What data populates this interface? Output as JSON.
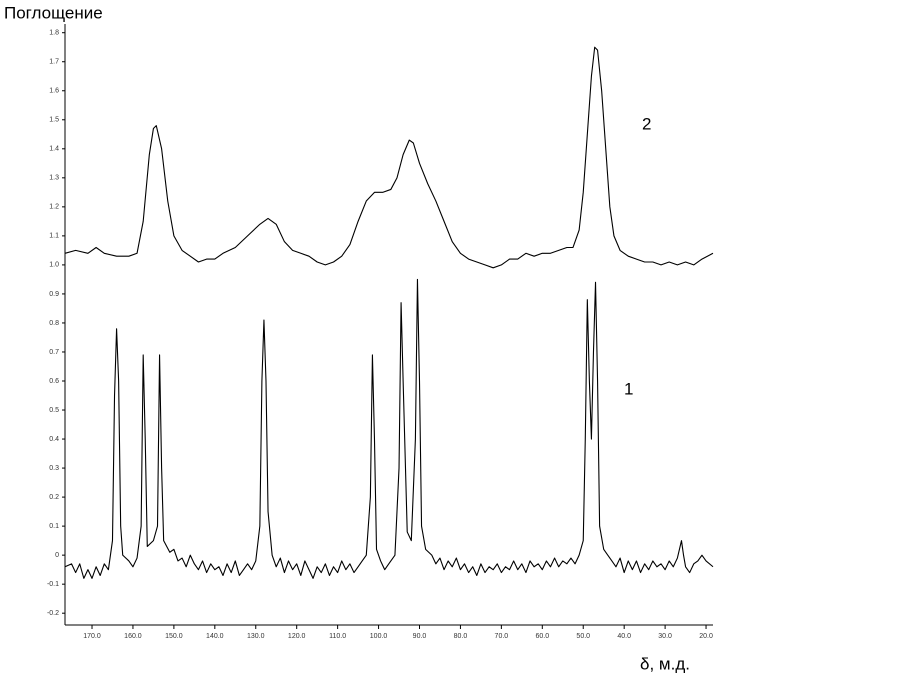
{
  "chart_data": {
    "type": "line",
    "ylabel": "Поглощение",
    "xlabel": "δ, м.д.",
    "xlim": [
      176.6,
      18.3
    ],
    "ylim": [
      -0.22,
      1.83
    ],
    "xticks": [
      {
        "value": 170,
        "label": "170.0"
      },
      {
        "value": 160,
        "label": "160.0"
      },
      {
        "value": 150,
        "label": "150.0"
      },
      {
        "value": 140,
        "label": "140.0"
      },
      {
        "value": 130,
        "label": "130.0"
      },
      {
        "value": 120,
        "label": "120.0"
      },
      {
        "value": 110,
        "label": "110.0"
      },
      {
        "value": 100,
        "label": "100.0"
      },
      {
        "value": 90,
        "label": "90.0"
      },
      {
        "value": 80,
        "label": "80.0"
      },
      {
        "value": 70,
        "label": "70.0"
      },
      {
        "value": 60,
        "label": "60.0"
      },
      {
        "value": 50,
        "label": "50.0"
      },
      {
        "value": 40,
        "label": "40.0"
      },
      {
        "value": 30,
        "label": "30.0"
      },
      {
        "value": 20,
        "label": "20.0"
      }
    ],
    "yticks": [
      -0.2,
      -0.1,
      0,
      0.1,
      0.2,
      0.3,
      0.4,
      0.5,
      0.6,
      0.7,
      0.8,
      0.9,
      {
        "value": 1,
        "label": "1.0"
      },
      1.1,
      1.2,
      1.3,
      1.4,
      1.5,
      1.6,
      1.7,
      1.8
    ],
    "series": [
      {
        "name": "1",
        "color": "#000000",
        "x": [
          176.6,
          175,
          174,
          173,
          172,
          171,
          170,
          169,
          168,
          167,
          166,
          165,
          164.5,
          164,
          163.5,
          163,
          162.5,
          161,
          160,
          159,
          158,
          157.5,
          157,
          156.5,
          155,
          154,
          153.5,
          153,
          152.5,
          151,
          150,
          149,
          148,
          147,
          146,
          145,
          144,
          143,
          142,
          141,
          140,
          139,
          138,
          137,
          136,
          135,
          134,
          133,
          132,
          131,
          130,
          129,
          128.5,
          128,
          127.5,
          127,
          126,
          125,
          124,
          123,
          122,
          121,
          120,
          119,
          118,
          117,
          116,
          115,
          114,
          113,
          112,
          111,
          110,
          109,
          108,
          107,
          106,
          105,
          104,
          103,
          102,
          101.5,
          101,
          100.5,
          99.5,
          98.5,
          97.5,
          96,
          95,
          94.5,
          94,
          93,
          92,
          91,
          90.5,
          90,
          89.5,
          88.5,
          87,
          86,
          85,
          84,
          83,
          82,
          81,
          80,
          79,
          78,
          77,
          76,
          75,
          74,
          73,
          72,
          71,
          70,
          69,
          68,
          67,
          66,
          65,
          64,
          63,
          62,
          61,
          60,
          59,
          58,
          57,
          56,
          55,
          54,
          53,
          52,
          51,
          50,
          49.5,
          49,
          48.5,
          48,
          47.5,
          47,
          46.5,
          46,
          45,
          44,
          43,
          42,
          41,
          40,
          39,
          38,
          37,
          36,
          35,
          34,
          33,
          32,
          31,
          30,
          29,
          28,
          27,
          26.5,
          26,
          25.5,
          25,
          24,
          23,
          22,
          21,
          20,
          18.3
        ],
        "values": [
          -0.04,
          -0.03,
          -0.06,
          -0.03,
          -0.08,
          -0.05,
          -0.08,
          -0.04,
          -0.07,
          -0.03,
          -0.05,
          0.05,
          0.55,
          0.78,
          0.6,
          0.1,
          0.0,
          -0.02,
          -0.04,
          -0.01,
          0.1,
          0.69,
          0.4,
          0.03,
          0.05,
          0.1,
          0.69,
          0.3,
          0.05,
          0.01,
          0.02,
          -0.02,
          -0.01,
          -0.04,
          0.0,
          -0.03,
          -0.05,
          -0.02,
          -0.06,
          -0.03,
          -0.05,
          -0.04,
          -0.07,
          -0.03,
          -0.06,
          -0.02,
          -0.07,
          -0.05,
          -0.03,
          -0.05,
          -0.02,
          0.1,
          0.6,
          0.81,
          0.6,
          0.15,
          0.0,
          -0.04,
          -0.01,
          -0.06,
          -0.02,
          -0.05,
          -0.03,
          -0.07,
          -0.02,
          -0.05,
          -0.08,
          -0.04,
          -0.06,
          -0.03,
          -0.07,
          -0.04,
          -0.06,
          -0.02,
          -0.05,
          -0.03,
          -0.06,
          -0.04,
          -0.02,
          0.0,
          0.2,
          0.69,
          0.4,
          0.02,
          -0.02,
          -0.05,
          -0.03,
          0.0,
          0.3,
          0.87,
          0.6,
          0.08,
          0.05,
          0.4,
          0.95,
          0.6,
          0.1,
          0.02,
          0.0,
          -0.03,
          -0.01,
          -0.05,
          -0.02,
          -0.04,
          -0.01,
          -0.05,
          -0.03,
          -0.06,
          -0.04,
          -0.07,
          -0.03,
          -0.06,
          -0.04,
          -0.05,
          -0.03,
          -0.06,
          -0.04,
          -0.05,
          -0.02,
          -0.05,
          -0.03,
          -0.06,
          -0.02,
          -0.04,
          -0.03,
          -0.05,
          -0.02,
          -0.04,
          -0.01,
          -0.04,
          -0.02,
          -0.03,
          -0.01,
          -0.03,
          0.0,
          0.05,
          0.4,
          0.88,
          0.6,
          0.4,
          0.7,
          0.94,
          0.6,
          0.1,
          0.02,
          0.0,
          -0.02,
          -0.04,
          -0.01,
          -0.06,
          -0.02,
          -0.05,
          -0.02,
          -0.06,
          -0.03,
          -0.05,
          -0.02,
          -0.04,
          -0.03,
          -0.05,
          -0.02,
          -0.04,
          -0.01,
          0.02,
          0.05,
          0.0,
          -0.04,
          -0.06,
          -0.03,
          -0.02,
          0.0,
          -0.02,
          -0.04
        ]
      },
      {
        "name": "2",
        "color": "#000000",
        "x": [
          176.6,
          174,
          171,
          169,
          167,
          164,
          161,
          159,
          157.5,
          156,
          155,
          154.3,
          153,
          151.5,
          150,
          148,
          146,
          144,
          142,
          140,
          138,
          135,
          132,
          129,
          127,
          125,
          123,
          121,
          119,
          117,
          115,
          113,
          111,
          109,
          107,
          105,
          103,
          101,
          99,
          97,
          95.5,
          94,
          92.5,
          91.5,
          90,
          88,
          86,
          84,
          82,
          80,
          78,
          76,
          74,
          72,
          70,
          68,
          66,
          64,
          62,
          60,
          58,
          56,
          54,
          52.5,
          51,
          50,
          49,
          48,
          47.2,
          46.5,
          45.5,
          44.5,
          43.5,
          42.5,
          41,
          39,
          37,
          35,
          33,
          31,
          29,
          27,
          25,
          23,
          21,
          18.3
        ],
        "values": [
          1.04,
          1.05,
          1.04,
          1.06,
          1.04,
          1.03,
          1.03,
          1.04,
          1.15,
          1.38,
          1.47,
          1.48,
          1.4,
          1.22,
          1.1,
          1.05,
          1.03,
          1.01,
          1.02,
          1.02,
          1.04,
          1.06,
          1.1,
          1.14,
          1.16,
          1.14,
          1.08,
          1.05,
          1.04,
          1.03,
          1.01,
          1.0,
          1.01,
          1.03,
          1.07,
          1.15,
          1.22,
          1.25,
          1.25,
          1.26,
          1.3,
          1.38,
          1.43,
          1.42,
          1.35,
          1.28,
          1.22,
          1.15,
          1.08,
          1.04,
          1.02,
          1.01,
          1.0,
          0.99,
          1.0,
          1.02,
          1.02,
          1.04,
          1.03,
          1.04,
          1.04,
          1.05,
          1.06,
          1.06,
          1.12,
          1.25,
          1.45,
          1.65,
          1.75,
          1.74,
          1.6,
          1.4,
          1.2,
          1.1,
          1.05,
          1.03,
          1.02,
          1.01,
          1.01,
          1.0,
          1.01,
          1.0,
          1.01,
          1.0,
          1.02,
          1.04
        ]
      }
    ]
  }
}
